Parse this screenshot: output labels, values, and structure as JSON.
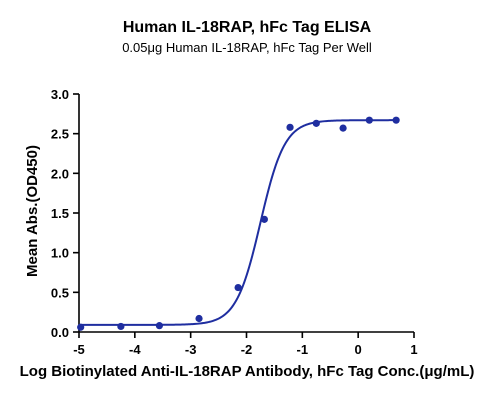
{
  "chart_data": {
    "type": "scatter",
    "title": "Human IL-18RAP, hFc Tag ELISA",
    "subtitle": "0.05μg Human IL-18RAP, hFc Tag Per Well",
    "xlabel": "Log Biotinylated Anti-IL-18RAP Antibody, hFc Tag Conc.(μg/mL)",
    "ylabel": "Mean Abs.(OD450)",
    "xlim": [
      -5,
      1
    ],
    "ylim": [
      0,
      3.0
    ],
    "xticks": [
      "-5",
      "-4",
      "-3",
      "-2",
      "-1",
      "0",
      "1"
    ],
    "yticks": [
      "0.0",
      "0.5",
      "1.0",
      "1.5",
      "2.0",
      "2.5",
      "3.0"
    ],
    "grid": false,
    "color": "#1f2ea0",
    "points": {
      "x": [
        -4.97,
        -4.25,
        -3.56,
        -2.85,
        -2.15,
        -1.68,
        -1.22,
        -0.75,
        -0.27,
        0.2,
        0.68
      ],
      "y": [
        0.06,
        0.07,
        0.08,
        0.17,
        0.56,
        1.42,
        2.58,
        2.63,
        2.57,
        2.67,
        2.67
      ]
    },
    "fit": {
      "model": "4PL",
      "bottom": 0.09,
      "top": 2.67,
      "log_ec50": -1.75,
      "hill": 2.0
    }
  }
}
